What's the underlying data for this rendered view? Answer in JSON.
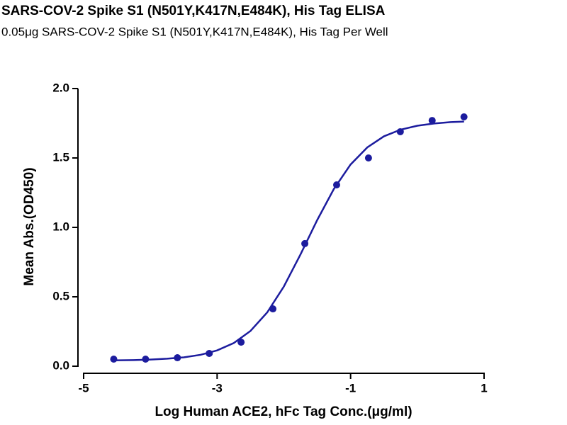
{
  "chart_data": {
    "type": "scatter",
    "title": "SARS-COV-2 Spike S1 (N501Y,K417N,E484K), His Tag ELISA",
    "subtitle": "0.05μg SARS-COV-2 Spike S1 (N501Y,K417N,E484K), His Tag Per Well",
    "x_label": "Log Human ACE2, hFc Tag Conc.(μg/ml)",
    "y_label": "Mean Abs.(OD450)",
    "color": "#1c1c9e",
    "x": [
      -4.549,
      -4.072,
      -3.595,
      -3.118,
      -2.641,
      -2.164,
      -1.686,
      -1.209,
      -0.732,
      -0.255,
      0.222,
      0.699
    ],
    "values": [
      0.051,
      0.051,
      0.061,
      0.092,
      0.173,
      0.413,
      0.883,
      1.306,
      1.5,
      1.689,
      1.77,
      1.796
    ],
    "fit": {
      "x": [
        -4.55,
        -4.25,
        -4,
        -3.75,
        -3.5,
        -3.25,
        -3,
        -2.75,
        -2.5,
        -2.25,
        -2,
        -1.75,
        -1.5,
        -1.25,
        -1,
        -0.75,
        -0.5,
        -0.25,
        0,
        0.25,
        0.5,
        0.7
      ],
      "values": [
        0.042,
        0.044,
        0.048,
        0.054,
        0.064,
        0.082,
        0.114,
        0.167,
        0.254,
        0.387,
        0.574,
        0.806,
        1.053,
        1.277,
        1.453,
        1.576,
        1.656,
        1.704,
        1.732,
        1.748,
        1.758,
        1.762
      ]
    },
    "xlim": [
      -5,
      1
    ],
    "xticks": [
      -5,
      -3,
      -1,
      1
    ],
    "ylim": [
      0,
      2
    ],
    "yticks": [
      {
        "value": 0,
        "label": "0.0"
      },
      0.5,
      {
        "value": 1,
        "label": "1.0"
      },
      1.5,
      {
        "value": 2,
        "label": "2.0"
      }
    ]
  }
}
